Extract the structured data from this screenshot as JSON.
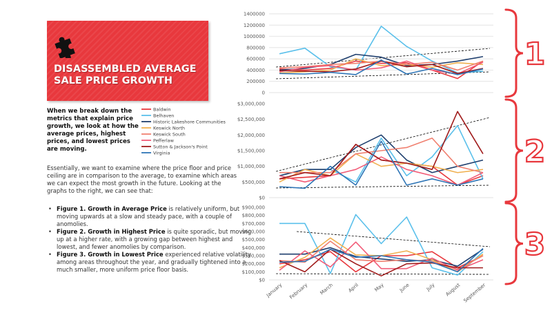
{
  "slide": {
    "title": "DISASSEMBLED AVERAGE SALE PRICE GROWTH",
    "intro": "When we break down the metrics that explain price growth, we look at how the average prices, highest prices, and lowest prices are moving.",
    "body": "Essentially, we want to examine where the price floor and price ceiling are in comparison to the average, to examine which areas we can expect the most growth in the future. Looking at the graphs to the right, we can see that:",
    "bullets": [
      {
        "lead": "Figure 1. Growth in Average Price",
        "text": " is relatively uniform, but moving upwards at a slow and steady pace, with a couple of anomolies."
      },
      {
        "lead": "Figure 2. Growth in Highest Price",
        "text": " is quite sporadic, but moving up at a higher rate, with a growing gap between highest and lowest, and fewer anomolies by comparison."
      },
      {
        "lead": "Figure 3. Growth in Lowest Price",
        "text": " experienced relative volatility among areas throughout the year, and gradually tightened into a much smaller, more uniform price floor basis."
      }
    ]
  },
  "chart_data": [
    {
      "type": "line",
      "label": "1",
      "grid": true,
      "ylim": [
        0,
        1400000
      ],
      "yticks": [
        0,
        200000,
        400000,
        600000,
        800000,
        1000000,
        1200000,
        1400000
      ],
      "series": [
        {
          "name": "Baldwin",
          "color": "#e8383d",
          "values": [
            420000,
            400000,
            430000,
            560000,
            520000,
            530000,
            400000,
            250000,
            560000
          ]
        },
        {
          "name": "Belhaven",
          "color": "#5bc0eb",
          "values": [
            690000,
            790000,
            460000,
            400000,
            1180000,
            820000,
            560000,
            350000,
            380000
          ]
        },
        {
          "name": "Historic Lakeshore Communities",
          "color": "#1f3f6e",
          "values": [
            400000,
            430000,
            500000,
            680000,
            630000,
            480000,
            500000,
            560000,
            640000
          ]
        },
        {
          "name": "Keswick North",
          "color": "#f0b050",
          "values": [
            350000,
            370000,
            400000,
            600000,
            480000,
            500000,
            450000,
            530000,
            500000
          ]
        },
        {
          "name": "Keswick South",
          "color": "#f08070",
          "values": [
            440000,
            460000,
            500000,
            520000,
            560000,
            500000,
            540000,
            400000,
            560000
          ]
        },
        {
          "name": "Pefferlaw",
          "color": "#f25c78",
          "values": [
            370000,
            450000,
            480000,
            400000,
            440000,
            560000,
            400000,
            330000,
            540000
          ]
        },
        {
          "name": "Sutton & Jackson's Point",
          "color": "#a01b1b",
          "values": [
            390000,
            380000,
            370000,
            420000,
            560000,
            460000,
            500000,
            340000,
            430000
          ]
        },
        {
          "name": "Virginia",
          "color": "#2e75b6",
          "values": [
            340000,
            330000,
            360000,
            320000,
            580000,
            330000,
            430000,
            320000,
            420000
          ]
        }
      ]
    },
    {
      "type": "line",
      "label": "2",
      "grid": false,
      "ylim": [
        0,
        3000000
      ],
      "yticks": [
        {
          "value": 0,
          "label": "$0"
        },
        {
          "value": 500000,
          "label": "$500,000"
        },
        {
          "value": 1000000,
          "label": "$1,000,000"
        },
        {
          "value": 1500000,
          "label": "$1,500,000"
        },
        {
          "value": 2000000,
          "label": "$2,000,000"
        },
        {
          "value": 2500000,
          "label": "$2,500,000"
        },
        {
          "value": 3000000,
          "label": "$3,000,000"
        }
      ],
      "series": [
        {
          "color": "#e8383d",
          "values": [
            600000,
            650000,
            700000,
            1700000,
            1200000,
            1100000,
            1000000,
            400000,
            700000
          ]
        },
        {
          "color": "#5bc0eb",
          "values": [
            700000,
            900000,
            900000,
            500000,
            1900000,
            700000,
            1300000,
            2300000,
            600000
          ]
        },
        {
          "color": "#1f3f6e",
          "values": [
            700000,
            900000,
            900000,
            1600000,
            2000000,
            1200000,
            800000,
            1000000,
            1200000
          ]
        },
        {
          "color": "#f0b050",
          "values": [
            500000,
            900000,
            700000,
            1400000,
            1000000,
            1100000,
            1000000,
            800000,
            900000
          ]
        },
        {
          "color": "#f08070",
          "values": [
            800000,
            800000,
            800000,
            1400000,
            1500000,
            1600000,
            1900000,
            1000000,
            800000
          ]
        },
        {
          "color": "#f25c78",
          "values": [
            700000,
            500000,
            700000,
            900000,
            1300000,
            900000,
            700000,
            400000,
            800000
          ]
        },
        {
          "color": "#a01b1b",
          "values": [
            600000,
            800000,
            700000,
            1700000,
            1200000,
            1100000,
            900000,
            2750000,
            1400000
          ]
        },
        {
          "color": "#2e75b6",
          "values": [
            350000,
            300000,
            1000000,
            400000,
            1800000,
            400000,
            600000,
            400000,
            600000
          ]
        }
      ]
    },
    {
      "type": "line",
      "label": "3",
      "grid": false,
      "categories": [
        "January",
        "February",
        "March",
        "April",
        "May",
        "June",
        "July",
        "August",
        "September"
      ],
      "ylim": [
        0,
        900000
      ],
      "yticks": [
        {
          "value": 0,
          "label": "$0"
        },
        {
          "value": 100000,
          "label": "$100,000"
        },
        {
          "value": 200000,
          "label": "$200,000"
        },
        {
          "value": 300000,
          "label": "$300,000"
        },
        {
          "value": 400000,
          "label": "$400,000"
        },
        {
          "value": 500000,
          "label": "$500,000"
        },
        {
          "value": 600000,
          "label": "$600,000"
        },
        {
          "value": 700000,
          "label": "$700,000"
        },
        {
          "value": 800000,
          "label": "$800,000"
        },
        {
          "value": 900000,
          "label": "$900,000"
        }
      ],
      "series": [
        {
          "color": "#e8383d",
          "values": [
            200000,
            250000,
            350000,
            100000,
            300000,
            300000,
            350000,
            150000,
            300000
          ]
        },
        {
          "color": "#5bc0eb",
          "values": [
            700000,
            700000,
            80000,
            810000,
            450000,
            780000,
            150000,
            60000,
            350000
          ]
        },
        {
          "color": "#1f3f6e",
          "values": [
            320000,
            320000,
            400000,
            290000,
            260000,
            230000,
            250000,
            170000,
            380000
          ]
        },
        {
          "color": "#f0b050",
          "values": [
            150000,
            280000,
            520000,
            310000,
            300000,
            360000,
            250000,
            100000,
            320000
          ]
        },
        {
          "color": "#f08070",
          "values": [
            240000,
            220000,
            480000,
            250000,
            230000,
            250000,
            230000,
            130000,
            300000
          ]
        },
        {
          "color": "#f25c78",
          "values": [
            120000,
            360000,
            160000,
            470000,
            140000,
            140000,
            270000,
            120000,
            250000
          ]
        },
        {
          "color": "#a01b1b",
          "values": [
            240000,
            100000,
            380000,
            200000,
            50000,
            200000,
            210000,
            150000,
            150000
          ]
        },
        {
          "color": "#2e75b6",
          "values": [
            220000,
            230000,
            380000,
            280000,
            300000,
            250000,
            220000,
            100000,
            390000
          ]
        }
      ]
    }
  ]
}
